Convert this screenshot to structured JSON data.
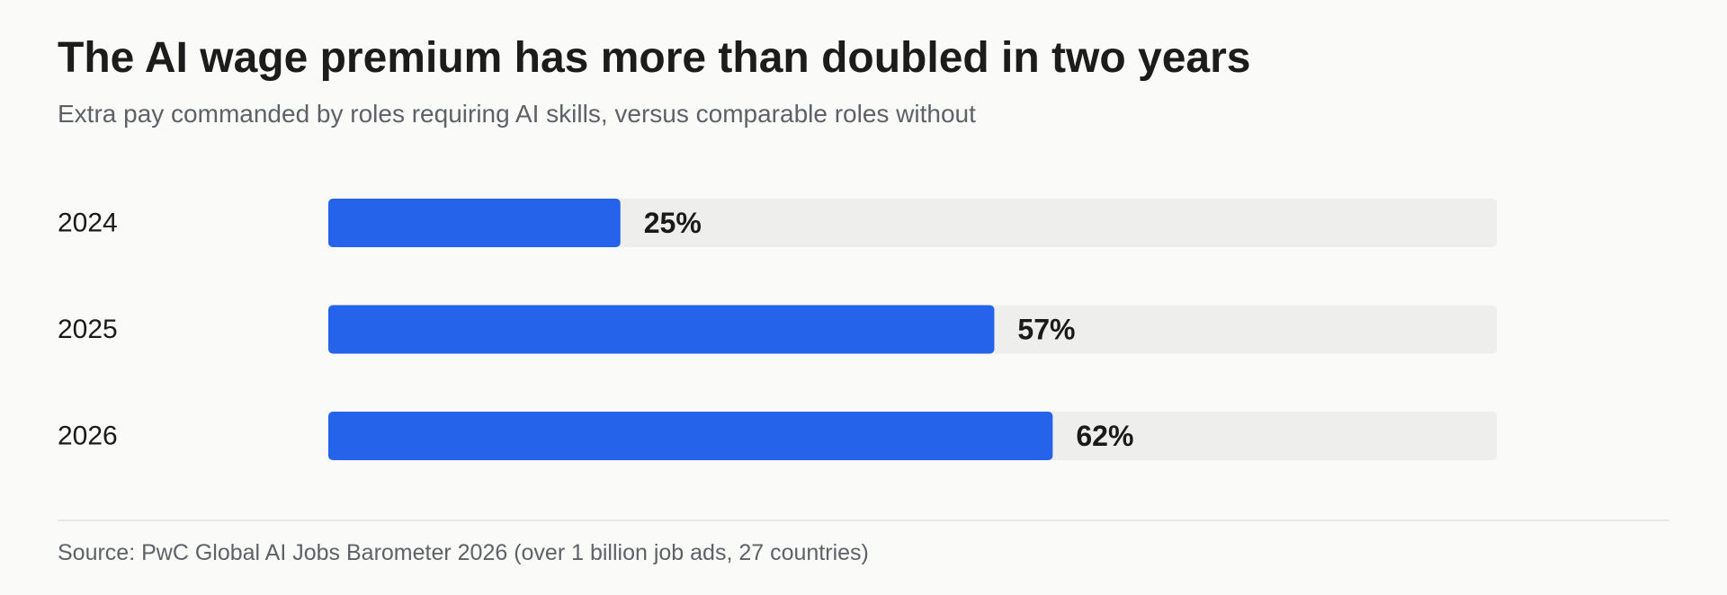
{
  "chart_data": {
    "type": "bar",
    "orientation": "horizontal",
    "title": "The AI wage premium has more than doubled in two years",
    "subtitle": "Extra pay commanded by roles requiring AI skills, versus comparable roles without",
    "categories": [
      "2024",
      "2025",
      "2026"
    ],
    "values": [
      25,
      57,
      62
    ],
    "data_labels": [
      "25%",
      "57%",
      "62%"
    ],
    "xlim": [
      0,
      100
    ],
    "grid": false,
    "legend": "none",
    "colors": {
      "bar": "#2563eb",
      "track": "#eeefed",
      "label": "#1a1a1a",
      "category": "#1a1a1a"
    }
  },
  "source": "Source: PwC Global AI Jobs Barometer 2026 (over 1 billion job ads, 27 countries)"
}
